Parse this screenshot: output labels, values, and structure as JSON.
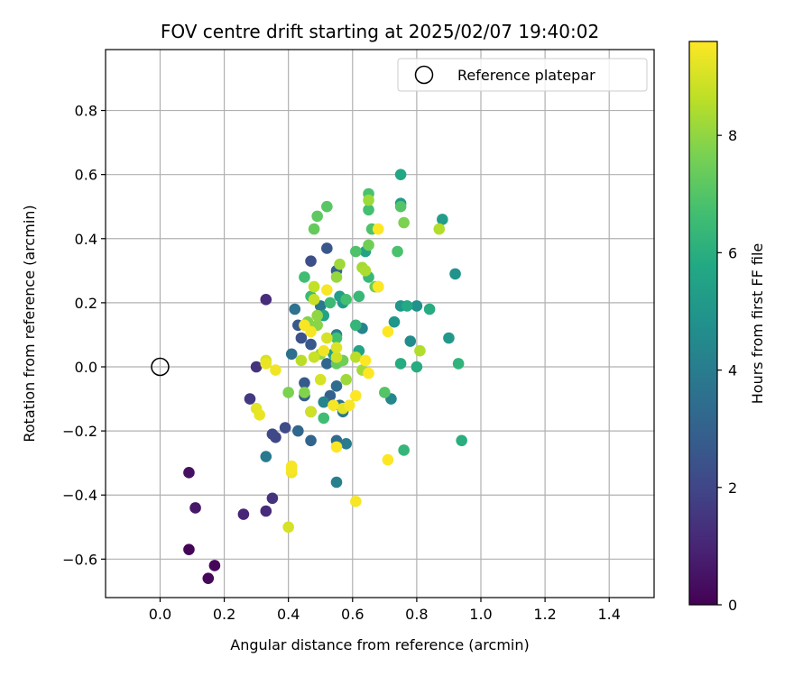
{
  "chart_data": {
    "type": "scatter",
    "title": "FOV centre drift starting at 2025/02/07 19:40:02",
    "xlabel": "Angular distance from reference (arcmin)",
    "ylabel": "Rotation from reference (arcmin)",
    "xlim": [
      -0.17,
      1.54
    ],
    "ylim": [
      -0.72,
      0.99
    ],
    "xticks": [
      0.0,
      0.2,
      0.4,
      0.6,
      0.8,
      1.0,
      1.2,
      1.4
    ],
    "xtick_labels": [
      "0.0",
      "0.2",
      "0.4",
      "0.6",
      "0.8",
      "1.0",
      "1.2",
      "1.4"
    ],
    "yticks": [
      -0.6,
      -0.4,
      -0.2,
      0.0,
      0.2,
      0.4,
      0.6,
      0.8
    ],
    "ytick_labels": [
      "−0.6",
      "−0.4",
      "−0.2",
      "0.0",
      "0.2",
      "0.4",
      "0.6",
      "0.8"
    ],
    "grid": true,
    "legend": {
      "position": "top-right",
      "entries": [
        "Reference platepar"
      ]
    },
    "reference_point": {
      "x": 0.0,
      "y": 0.0,
      "label": "Reference platepar"
    },
    "colorbar": {
      "label": "Hours from first FF file",
      "colormap": "viridis",
      "range": [
        0,
        9.6
      ],
      "ticks": [
        0,
        2,
        4,
        6,
        8
      ],
      "tick_labels": [
        "0",
        "2",
        "4",
        "6",
        "8"
      ]
    },
    "columns": [
      "x",
      "y",
      "hours"
    ],
    "points": [
      [
        0.09,
        -0.57,
        0.1
      ],
      [
        0.17,
        -0.62,
        0.15
      ],
      [
        0.15,
        -0.66,
        0.2
      ],
      [
        0.09,
        -0.33,
        0.4
      ],
      [
        0.11,
        -0.44,
        0.6
      ],
      [
        0.26,
        -0.46,
        1.0
      ],
      [
        0.33,
        -0.45,
        1.2
      ],
      [
        0.35,
        -0.41,
        1.4
      ],
      [
        0.33,
        0.21,
        1.2
      ],
      [
        0.3,
        0.0,
        1.4
      ],
      [
        0.28,
        -0.1,
        1.6
      ],
      [
        0.36,
        -0.22,
        2.0
      ],
      [
        0.35,
        -0.21,
        2.1
      ],
      [
        0.39,
        -0.19,
        2.2
      ],
      [
        0.47,
        0.33,
        2.3
      ],
      [
        0.52,
        0.37,
        2.6
      ],
      [
        0.43,
        0.13,
        2.6
      ],
      [
        0.44,
        0.09,
        2.4
      ],
      [
        0.45,
        -0.05,
        2.7
      ],
      [
        0.45,
        -0.09,
        2.9
      ],
      [
        0.47,
        -0.14,
        3.0
      ],
      [
        0.47,
        -0.23,
        3.1
      ],
      [
        0.47,
        0.07,
        2.6
      ],
      [
        0.43,
        -0.2,
        3.2
      ],
      [
        0.55,
        0.3,
        3.0
      ],
      [
        0.55,
        -0.23,
        3.4
      ],
      [
        0.42,
        0.18,
        3.6
      ],
      [
        0.5,
        0.19,
        3.8
      ],
      [
        0.52,
        0.01,
        3.2
      ],
      [
        0.53,
        -0.09,
        3.0
      ],
      [
        0.55,
        -0.06,
        3.4
      ],
      [
        0.56,
        -0.12,
        3.6
      ],
      [
        0.57,
        -0.14,
        3.8
      ],
      [
        0.58,
        -0.24,
        4.0
      ],
      [
        0.55,
        0.1,
        4.1
      ],
      [
        0.41,
        0.04,
        3.5
      ],
      [
        0.55,
        -0.36,
        4.2
      ],
      [
        0.51,
        -0.11,
        4.3
      ],
      [
        0.63,
        0.12,
        4.3
      ],
      [
        0.72,
        -0.1,
        4.4
      ],
      [
        0.78,
        0.08,
        4.6
      ],
      [
        0.8,
        0.19,
        4.8
      ],
      [
        0.92,
        0.29,
        4.9
      ],
      [
        0.75,
        0.19,
        5.0
      ],
      [
        0.73,
        0.14,
        5.0
      ],
      [
        0.9,
        0.09,
        5.1
      ],
      [
        0.75,
        0.51,
        5.2
      ],
      [
        0.88,
        0.46,
        5.3
      ],
      [
        0.56,
        0.22,
        5.4
      ],
      [
        0.57,
        0.2,
        5.2
      ],
      [
        0.51,
        0.16,
        5.5
      ],
      [
        0.54,
        0.04,
        5.5
      ],
      [
        0.64,
        0.36,
        5.6
      ],
      [
        0.62,
        0.05,
        5.6
      ],
      [
        0.75,
        0.6,
        5.7
      ],
      [
        0.77,
        0.19,
        5.8
      ],
      [
        0.8,
        0.0,
        5.9
      ],
      [
        0.75,
        0.01,
        5.9
      ],
      [
        0.84,
        0.18,
        5.9
      ],
      [
        0.33,
        -0.28,
        3.9
      ],
      [
        0.94,
        -0.23,
        6.0
      ],
      [
        0.93,
        0.01,
        6.2
      ],
      [
        0.76,
        -0.26,
        6.3
      ],
      [
        0.61,
        0.13,
        6.3
      ],
      [
        0.65,
        0.28,
        6.4
      ],
      [
        0.62,
        0.22,
        6.4
      ],
      [
        0.47,
        0.22,
        6.5
      ],
      [
        0.53,
        0.2,
        6.5
      ],
      [
        0.45,
        0.28,
        6.6
      ],
      [
        0.51,
        -0.16,
        6.6
      ],
      [
        0.55,
        0.09,
        6.7
      ],
      [
        0.58,
        0.21,
        6.7
      ],
      [
        0.65,
        0.49,
        6.7
      ],
      [
        0.74,
        0.36,
        6.8
      ],
      [
        0.65,
        0.54,
        6.8
      ],
      [
        0.61,
        0.36,
        6.9
      ],
      [
        0.66,
        0.43,
        6.9
      ],
      [
        0.7,
        -0.08,
        7.0
      ],
      [
        0.75,
        0.5,
        7.0
      ],
      [
        0.52,
        0.5,
        7.1
      ],
      [
        0.49,
        0.47,
        7.2
      ],
      [
        0.48,
        0.43,
        7.3
      ],
      [
        0.55,
        0.01,
        7.3
      ],
      [
        0.57,
        0.02,
        7.5
      ],
      [
        0.65,
        0.38,
        7.5
      ],
      [
        0.67,
        0.25,
        7.5
      ],
      [
        0.68,
        0.25,
        7.6
      ],
      [
        0.76,
        0.45,
        7.7
      ],
      [
        0.4,
        -0.08,
        7.7
      ],
      [
        0.45,
        -0.08,
        7.8
      ],
      [
        0.46,
        0.14,
        7.8
      ],
      [
        0.49,
        0.13,
        7.9
      ],
      [
        0.49,
        0.16,
        8.0
      ],
      [
        0.5,
        0.04,
        8.0
      ],
      [
        0.55,
        0.28,
        8.1
      ],
      [
        0.56,
        0.32,
        8.2
      ],
      [
        0.58,
        -0.04,
        8.2
      ],
      [
        0.63,
        -0.01,
        8.3
      ],
      [
        0.63,
        0.31,
        8.3
      ],
      [
        0.64,
        0.3,
        8.4
      ],
      [
        0.81,
        0.05,
        8.5
      ],
      [
        0.87,
        0.43,
        8.5
      ],
      [
        0.65,
        0.52,
        8.2
      ],
      [
        0.61,
        0.03,
        8.6
      ],
      [
        0.44,
        0.02,
        8.6
      ],
      [
        0.48,
        0.25,
        8.7
      ],
      [
        0.48,
        0.21,
        8.8
      ],
      [
        0.48,
        0.03,
        8.8
      ],
      [
        0.47,
        -0.14,
        8.9
      ],
      [
        0.5,
        -0.04,
        9.0
      ],
      [
        0.52,
        0.09,
        9.0
      ],
      [
        0.55,
        0.06,
        9.1
      ],
      [
        0.55,
        0.03,
        8.9
      ],
      [
        0.57,
        -0.13,
        9.2
      ],
      [
        0.3,
        -0.13,
        9.2
      ],
      [
        0.31,
        -0.15,
        9.3
      ],
      [
        0.33,
        0.01,
        9.3
      ],
      [
        0.33,
        0.02,
        9.0
      ],
      [
        0.36,
        -0.01,
        9.4
      ],
      [
        0.4,
        -0.5,
        9.0
      ],
      [
        0.41,
        -0.33,
        9.4
      ],
      [
        0.41,
        -0.32,
        9.5
      ],
      [
        0.41,
        -0.31,
        9.5
      ],
      [
        0.45,
        0.13,
        9.5
      ],
      [
        0.47,
        0.11,
        9.5
      ],
      [
        0.51,
        0.05,
        9.4
      ],
      [
        0.52,
        0.24,
        9.5
      ],
      [
        0.54,
        -0.12,
        9.5
      ],
      [
        0.55,
        -0.25,
        9.6
      ],
      [
        0.59,
        -0.12,
        9.5
      ],
      [
        0.61,
        -0.09,
        9.6
      ],
      [
        0.61,
        -0.42,
        9.5
      ],
      [
        0.64,
        0.02,
        9.6
      ],
      [
        0.65,
        -0.02,
        9.6
      ],
      [
        0.68,
        0.43,
        9.6
      ],
      [
        0.68,
        0.25,
        9.6
      ],
      [
        0.71,
        -0.29,
        9.6
      ],
      [
        0.71,
        0.11,
        9.6
      ]
    ]
  }
}
